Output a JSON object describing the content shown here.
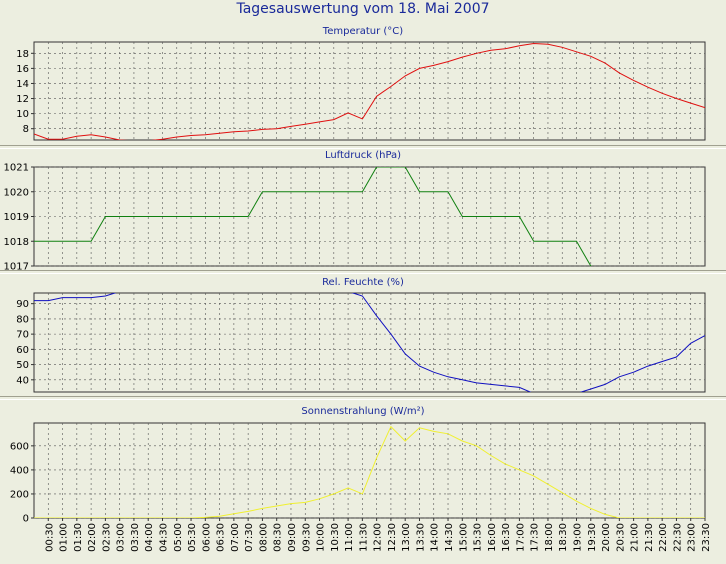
{
  "title": "Tagesauswertung vom 18. Mai 2007",
  "colors": {
    "background": "#eceee0",
    "grid": "#555555",
    "temperature": "#e01010",
    "pressure": "#108010",
    "humidity": "#1010c0",
    "radiation": "#f0f030",
    "title": "#1a2a9a"
  },
  "chart_data": [
    {
      "type": "line",
      "title": "Temperatur (°C)",
      "ylim": [
        6.5,
        19.5
      ],
      "yticks": [
        8,
        10,
        12,
        14,
        16,
        18
      ],
      "x": [
        0,
        0.5,
        1,
        1.5,
        2,
        2.5,
        3,
        3.5,
        4,
        4.5,
        5,
        5.5,
        6,
        6.5,
        7,
        7.5,
        8,
        8.5,
        9,
        9.5,
        10,
        10.5,
        11,
        11.5,
        12,
        12.5,
        13,
        13.5,
        14,
        14.5,
        15,
        15.5,
        16,
        16.5,
        17,
        17.5,
        18,
        18.5,
        19,
        19.5,
        20,
        20.5,
        21,
        21.5,
        22,
        22.5,
        23,
        23.5
      ],
      "series": [
        {
          "values": [
            7.3,
            6.6,
            6.6,
            7.0,
            7.2,
            6.9,
            6.5,
            6.4,
            6.4,
            6.6,
            6.9,
            7.1,
            7.2,
            7.4,
            7.6,
            7.7,
            7.9,
            8.0,
            8.3,
            8.6,
            8.9,
            9.2,
            10.1,
            9.3,
            12.3,
            13.6,
            15.0,
            16.0,
            16.4,
            16.9,
            17.5,
            18.0,
            18.4,
            18.6,
            19.0,
            19.3,
            19.2,
            18.8,
            18.2,
            17.6,
            16.7,
            15.4,
            14.4,
            13.5,
            12.7,
            12.0,
            11.4,
            10.8
          ]
        }
      ],
      "grid": true
    },
    {
      "type": "line",
      "title": "Luftdruck (hPa)",
      "ylim": [
        1017,
        1021
      ],
      "yticks": [
        1017,
        1018,
        1019,
        1020,
        1021
      ],
      "x": [
        0,
        0.5,
        1,
        1.5,
        2,
        2.5,
        3,
        3.5,
        4,
        4.5,
        5,
        5.5,
        6,
        6.5,
        7,
        7.5,
        8,
        8.5,
        9,
        9.5,
        10,
        10.5,
        11,
        11.5,
        12,
        12.5,
        13,
        13.5,
        14,
        14.5,
        15,
        15.5,
        16,
        16.5,
        17,
        17.5,
        18,
        18.5,
        19,
        19.5,
        20,
        20.5,
        21,
        21.5,
        22,
        22.5,
        23,
        23.5
      ],
      "series": [
        {
          "values": [
            1018,
            1018,
            1018,
            1018,
            1018,
            1019,
            1019,
            1019,
            1019,
            1019,
            1019,
            1019,
            1019,
            1019,
            1019,
            1019,
            1020,
            1020,
            1020,
            1020,
            1020,
            1020,
            1020,
            1020,
            1021,
            1021,
            1021,
            1020,
            1020,
            1020,
            1019,
            1019,
            1019,
            1019,
            1019,
            1018,
            1018,
            1018,
            1018,
            1017,
            1016.8,
            1016.8,
            1016.8,
            1016.8,
            1016.8,
            1016.8,
            1016.8,
            1016.8
          ]
        }
      ],
      "grid": true
    },
    {
      "type": "line",
      "title": "Rel. Feuchte (%)",
      "ylim": [
        32,
        97
      ],
      "yticks": [
        40,
        50,
        60,
        70,
        80,
        90
      ],
      "x": [
        0,
        0.5,
        1,
        1.5,
        2,
        2.5,
        3,
        3.5,
        4,
        4.5,
        5,
        5.5,
        6,
        6.5,
        7,
        7.5,
        8,
        8.5,
        9,
        9.5,
        10,
        10.5,
        11,
        11.5,
        12,
        12.5,
        13,
        13.5,
        14,
        14.5,
        15,
        15.5,
        16,
        16.5,
        17,
        17.5,
        18,
        18.5,
        19,
        19.5,
        20,
        20.5,
        21,
        21.5,
        22,
        22.5,
        23,
        23.5
      ],
      "series": [
        {
          "values": [
            92,
            92,
            94,
            94,
            94,
            95,
            98,
            98,
            98,
            98,
            98,
            98,
            98,
            98,
            98,
            98,
            98,
            98,
            98,
            98,
            98,
            98,
            98,
            95,
            82,
            70,
            57,
            49,
            45,
            42,
            40,
            38,
            37,
            36,
            35,
            31,
            31,
            31,
            31,
            34,
            37,
            42,
            45,
            49,
            52,
            55,
            64,
            69
          ]
        }
      ],
      "grid": true
    },
    {
      "type": "line",
      "title": "Sonnenstrahlung (W/m²)",
      "ylim": [
        0,
        790
      ],
      "yticks": [
        0,
        200,
        400,
        600
      ],
      "x": [
        0,
        0.5,
        1,
        1.5,
        2,
        2.5,
        3,
        3.5,
        4,
        4.5,
        5,
        5.5,
        6,
        6.5,
        7,
        7.5,
        8,
        8.5,
        9,
        9.5,
        10,
        10.5,
        11,
        11.5,
        12,
        12.5,
        13,
        13.5,
        14,
        14.5,
        15,
        15.5,
        16,
        16.5,
        17,
        17.5,
        18,
        18.5,
        19,
        19.5,
        20,
        20.5,
        21,
        21.5,
        22,
        22.5,
        23,
        23.5
      ],
      "series": [
        {
          "values": [
            0,
            0,
            0,
            0,
            0,
            0,
            0,
            0,
            0,
            0,
            0,
            0,
            5,
            15,
            35,
            55,
            80,
            100,
            120,
            130,
            160,
            200,
            250,
            200,
            500,
            760,
            640,
            750,
            720,
            700,
            640,
            600,
            520,
            450,
            400,
            350,
            280,
            210,
            140,
            80,
            30,
            0,
            0,
            0,
            0,
            0,
            0,
            0
          ]
        }
      ],
      "grid": true,
      "xticklabels": [
        "00:30",
        "01:00",
        "01:30",
        "02:00",
        "02:30",
        "03:00",
        "03:30",
        "04:00",
        "04:30",
        "05:00",
        "05:30",
        "06:00",
        "06:30",
        "07:00",
        "07:30",
        "08:00",
        "08:30",
        "09:00",
        "09:30",
        "10:00",
        "10:30",
        "11:00",
        "11:30",
        "12:00",
        "12:30",
        "13:00",
        "13:30",
        "14:00",
        "14:30",
        "15:00",
        "15:30",
        "16:00",
        "16:30",
        "17:00",
        "17:30",
        "18:00",
        "18:30",
        "19:00",
        "19:30",
        "20:00",
        "20:30",
        "21:00",
        "21:30",
        "22:00",
        "22:30",
        "23:00",
        "23:30"
      ]
    }
  ]
}
